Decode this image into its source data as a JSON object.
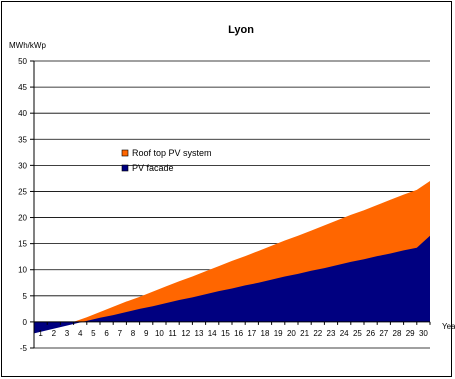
{
  "chart_data": {
    "type": "area",
    "title": "Lyon",
    "ylabel": "MWh/kWp",
    "xlabel": "Year",
    "ylim": [
      -5,
      50
    ],
    "yticks": [
      -5,
      0,
      5,
      10,
      15,
      20,
      25,
      30,
      35,
      40,
      45,
      50
    ],
    "x": [
      0,
      1,
      2,
      3,
      4,
      5,
      6,
      7,
      8,
      9,
      10,
      11,
      12,
      13,
      14,
      15,
      16,
      17,
      18,
      19,
      20,
      21,
      22,
      23,
      24,
      25,
      26,
      27,
      28,
      29,
      30
    ],
    "xticks": [
      1,
      2,
      3,
      4,
      5,
      6,
      7,
      8,
      9,
      10,
      11,
      12,
      13,
      14,
      15,
      16,
      17,
      18,
      19,
      20,
      21,
      22,
      23,
      24,
      25,
      26,
      27,
      28,
      29,
      30
    ],
    "grid": "horizontal",
    "legend_position": "center-left",
    "series": [
      {
        "name": "Roof top PV system",
        "color": "#ff6600",
        "values": [
          -2.2,
          -1.2,
          -0.3,
          0.0,
          0.9,
          1.9,
          2.9,
          3.9,
          4.8,
          5.8,
          6.8,
          7.8,
          8.7,
          9.7,
          10.7,
          11.7,
          12.6,
          13.6,
          14.6,
          15.6,
          16.5,
          17.5,
          18.5,
          19.5,
          20.5,
          21.4,
          22.4,
          23.4,
          24.4,
          25.3,
          27.0
        ]
      },
      {
        "name": "PV facade",
        "color": "#000080",
        "values": [
          -2.2,
          -1.6,
          -1.0,
          -0.4,
          0.2,
          0.8,
          1.3,
          1.9,
          2.5,
          3.0,
          3.6,
          4.2,
          4.7,
          5.3,
          5.9,
          6.4,
          7.0,
          7.5,
          8.1,
          8.7,
          9.2,
          9.8,
          10.3,
          10.9,
          11.5,
          12.0,
          12.6,
          13.1,
          13.7,
          14.2,
          16.5
        ]
      }
    ]
  }
}
